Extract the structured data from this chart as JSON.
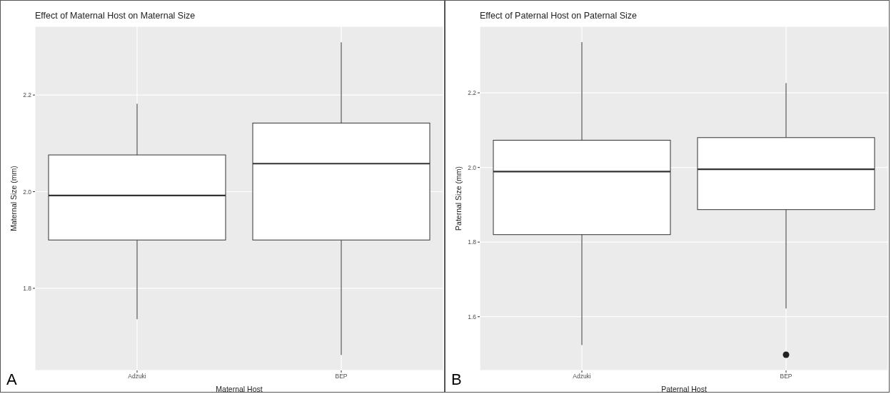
{
  "chart_data": [
    {
      "type": "box",
      "title": "Effect of Maternal Host on Maternal Size",
      "xlabel": "Maternal Host",
      "ylabel": "Maternal Size (mm)",
      "categories": [
        "Adzuki",
        "BEP"
      ],
      "boxes": [
        {
          "low": 1.736,
          "q1": 1.9,
          "median": 1.992,
          "q3": 2.076,
          "high": 2.182
        },
        {
          "low": 1.662,
          "q1": 1.9,
          "median": 2.058,
          "q3": 2.142,
          "high": 2.309
        }
      ],
      "ylim": [
        1.63,
        2.342
      ],
      "yticks": [
        1.8,
        {
          "value": 2,
          "label": "2.0"
        },
        2.2
      ],
      "grid": true,
      "annotations": [
        "A"
      ]
    },
    {
      "type": "box",
      "title": "Effect of Paternal Host on Paternal Size",
      "xlabel": "Paternal Host",
      "ylabel": "Paternal Size (mm)",
      "categories": [
        "Adzuki",
        "BEP"
      ],
      "boxes": [
        {
          "low": 1.524,
          "q1": 1.82,
          "median": 1.989,
          "q3": 2.073,
          "high": 2.336
        },
        {
          "low": 1.622,
          "q1": 1.887,
          "median": 1.995,
          "q3": 2.08,
          "high": 2.226,
          "outliers": [
            1.498
          ]
        }
      ],
      "ylim": [
        1.456,
        2.378
      ],
      "yticks": [
        1.6,
        1.8,
        {
          "value": 2,
          "label": "2.0"
        },
        2.2
      ],
      "grid": true,
      "annotations": [
        "B"
      ]
    }
  ]
}
